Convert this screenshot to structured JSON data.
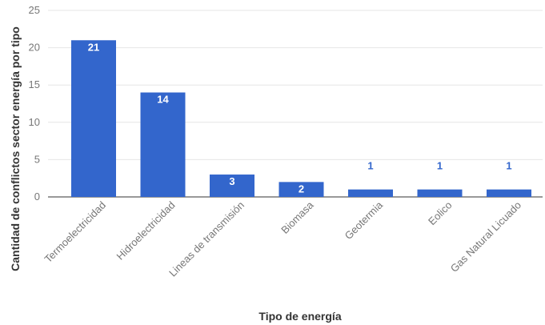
{
  "chart_data": {
    "type": "bar",
    "categories": [
      "Termoelectricidad",
      "Hidroelectricidad",
      "Lineas de transmisión",
      "Biomasa",
      "Geotermia",
      "Eolico",
      "Gas Natural Licuado"
    ],
    "values": [
      21,
      14,
      3,
      2,
      1,
      1,
      1
    ],
    "data_labels": [
      "21",
      "14",
      "3",
      "2",
      "1",
      "1",
      "1"
    ],
    "xlabel": "Tipo de energía",
    "ylabel": "Cantidad de conflictos sector energía por tipo",
    "ylim": [
      0,
      25
    ],
    "yticks": [
      0,
      5,
      10,
      15,
      20,
      25
    ],
    "grid": true,
    "legend": "none",
    "colors": {
      "bar": "#3366cc",
      "gridline": "#e6e6e6",
      "baseline": "#333333",
      "label_inside": "#ffffff",
      "label_outside": "#3366cc"
    }
  }
}
